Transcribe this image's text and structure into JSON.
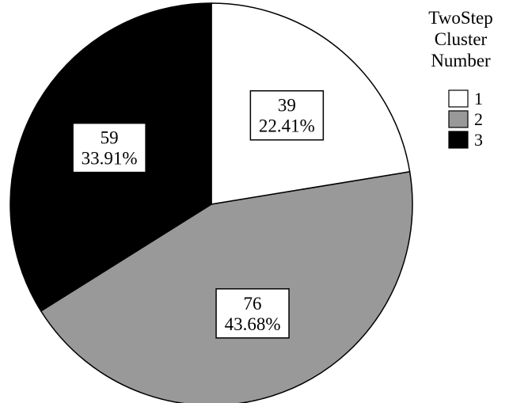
{
  "chart_data": {
    "type": "pie",
    "title": "",
    "start_angle_deg": 0,
    "direction": "clockwise",
    "slices": [
      {
        "category": "1",
        "count": 39,
        "percent": "22.41%",
        "color": "#ffffff"
      },
      {
        "category": "2",
        "count": 76,
        "percent": "43.68%",
        "color": "#999999"
      },
      {
        "category": "3",
        "count": 59,
        "percent": "33.91%",
        "color": "#000000"
      }
    ],
    "legend": {
      "title_lines": [
        "TwoStep",
        "Cluster",
        "Number"
      ],
      "entries": [
        "1",
        "2",
        "3"
      ],
      "placement": "top-right"
    }
  }
}
